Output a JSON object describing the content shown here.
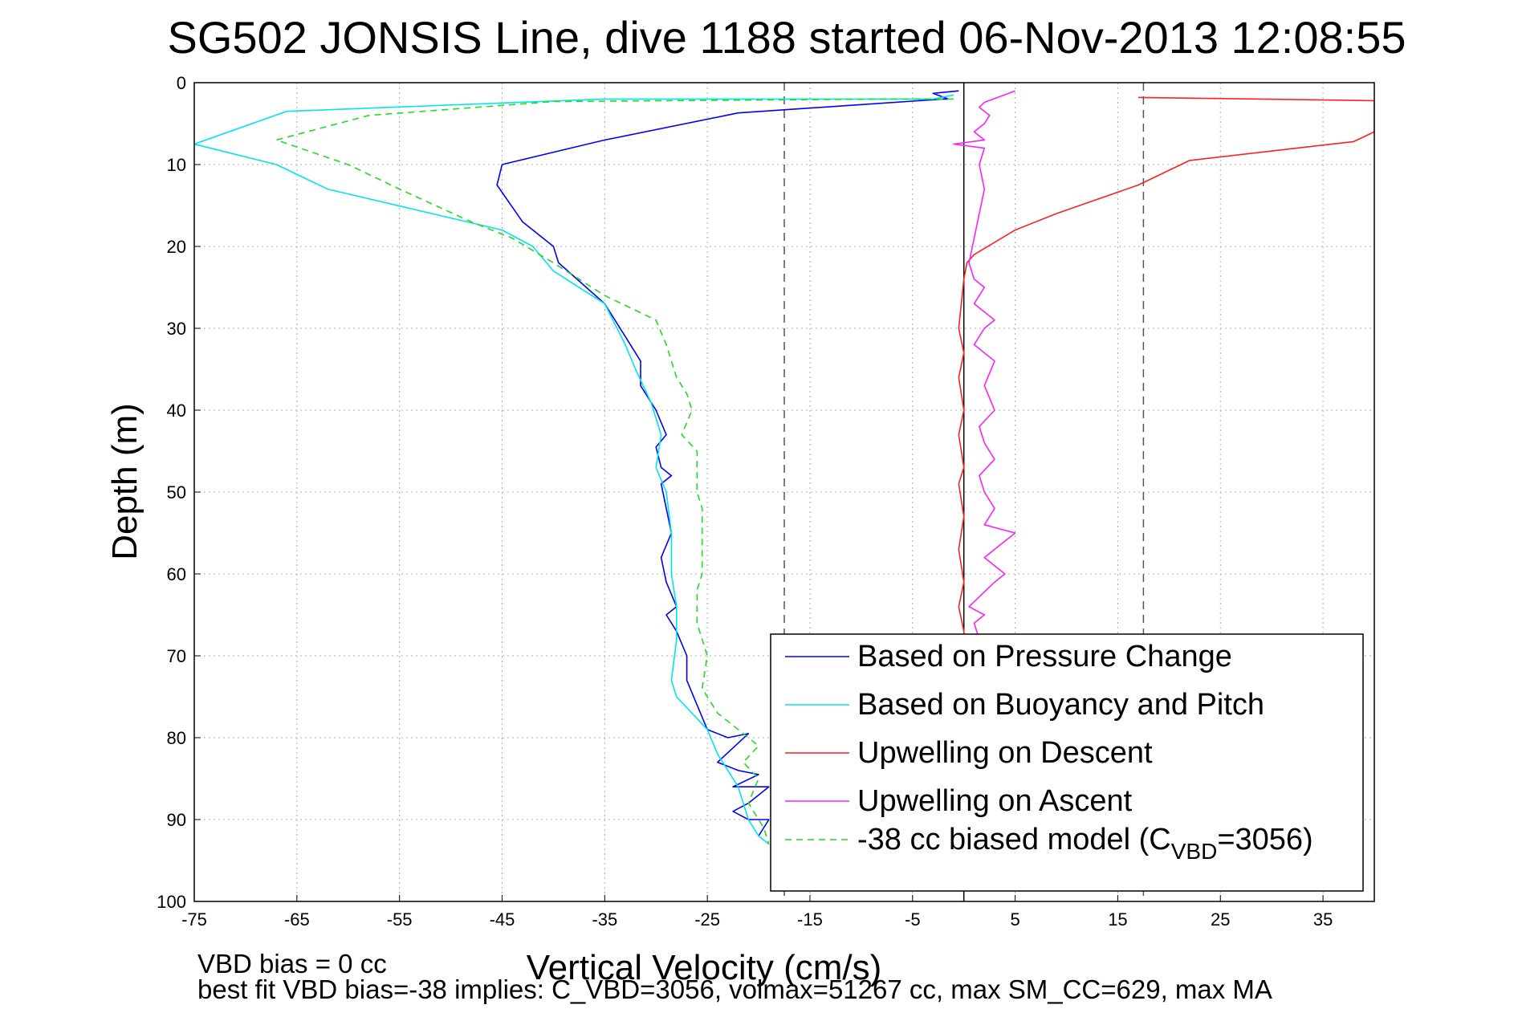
{
  "chart_data": {
    "type": "line",
    "title": "SG502 JONSIS Line, dive 1188 started 06-Nov-2013 12:08:55",
    "xlabel": "Vertical Velocity (cm/s)",
    "ylabel": "Depth (m)",
    "xlim": [
      -75,
      40
    ],
    "ylim": [
      0,
      100
    ],
    "y_reversed": true,
    "grid": true,
    "xticks": [
      -75,
      -65,
      -55,
      -45,
      -35,
      -25,
      -15,
      -5,
      5,
      15,
      25,
      35
    ],
    "yticks": [
      0,
      10,
      20,
      30,
      40,
      50,
      60,
      70,
      80,
      90,
      100
    ],
    "legend_position": "bottom-right",
    "reference_lines": [
      {
        "x": -17.5,
        "style": "dashed",
        "color": "#555555"
      },
      {
        "x": 0,
        "style": "solid",
        "color": "#000000"
      },
      {
        "x": 17.5,
        "style": "dashed",
        "color": "#555555"
      }
    ],
    "series": [
      {
        "name": "Based on Pressure Change",
        "color": "#0000ff",
        "dash": "none",
        "points": [
          [
            -0.5,
            1
          ],
          [
            -3,
            1.3
          ],
          [
            -1.5,
            2
          ],
          [
            -2,
            2
          ],
          [
            -22,
            3.7
          ],
          [
            -35,
            7
          ],
          [
            -45,
            10
          ],
          [
            -45.5,
            12.5
          ],
          [
            -43,
            17
          ],
          [
            -40,
            20
          ],
          [
            -39.5,
            22
          ],
          [
            -35,
            27
          ],
          [
            -33,
            31
          ],
          [
            -31.5,
            34
          ],
          [
            -31.5,
            37
          ],
          [
            -30,
            40
          ],
          [
            -29,
            43
          ],
          [
            -30,
            44.5
          ],
          [
            -29.5,
            47
          ],
          [
            -28.5,
            48
          ],
          [
            -29.5,
            49
          ],
          [
            -29,
            52
          ],
          [
            -28.5,
            55
          ],
          [
            -29.5,
            58
          ],
          [
            -29,
            61
          ],
          [
            -28,
            64
          ],
          [
            -29,
            65
          ],
          [
            -28,
            67
          ],
          [
            -27,
            70
          ],
          [
            -27,
            73
          ],
          [
            -26,
            76
          ],
          [
            -25,
            79
          ],
          [
            -23,
            80
          ],
          [
            -21,
            79.5
          ],
          [
            -24,
            83
          ],
          [
            -22,
            84
          ],
          [
            -20,
            84.5
          ],
          [
            -22.5,
            86
          ],
          [
            -19,
            86
          ],
          [
            -21,
            88
          ],
          [
            -22.5,
            89
          ],
          [
            -21,
            90
          ],
          [
            -19,
            90
          ],
          [
            -20,
            92
          ]
        ]
      },
      {
        "name": "Based on Buoyancy and Pitch",
        "color": "#00e5ee",
        "dash": "none",
        "points": [
          [
            -1,
            1.5
          ],
          [
            -3,
            2
          ],
          [
            -35,
            2
          ],
          [
            -66,
            3.5
          ],
          [
            -75,
            7.5
          ],
          [
            -67,
            10
          ],
          [
            -62,
            13
          ],
          [
            -45,
            18
          ],
          [
            -42,
            20
          ],
          [
            -40,
            23
          ],
          [
            -35,
            27
          ],
          [
            -33,
            32
          ],
          [
            -32,
            35
          ],
          [
            -30.5,
            39
          ],
          [
            -29.5,
            43
          ],
          [
            -30,
            47
          ],
          [
            -29,
            50
          ],
          [
            -28.5,
            55
          ],
          [
            -28.5,
            60
          ],
          [
            -28,
            64
          ],
          [
            -28,
            68
          ],
          [
            -28.5,
            73
          ],
          [
            -28,
            75
          ],
          [
            -25,
            79
          ],
          [
            -24,
            82
          ],
          [
            -22,
            86
          ],
          [
            -21,
            90
          ],
          [
            -20,
            92
          ],
          [
            -19,
            93
          ]
        ]
      },
      {
        "name": "Upwelling on Descent",
        "color": "#ff2020",
        "dash": "none",
        "points": [
          [
            17,
            1.8
          ],
          [
            40,
            2.2
          ],
          [
            40,
            6
          ],
          [
            38,
            7.2
          ],
          [
            22,
            9.5
          ],
          [
            17,
            12.5
          ],
          [
            9,
            16
          ],
          [
            5,
            18
          ],
          [
            1,
            21
          ],
          [
            0.3,
            22
          ],
          [
            0,
            24
          ],
          [
            -0.5,
            30
          ],
          [
            0,
            33
          ],
          [
            -0.5,
            36
          ],
          [
            0,
            40
          ],
          [
            -0.5,
            43
          ],
          [
            0,
            47
          ],
          [
            -0.5,
            49
          ],
          [
            0,
            53
          ],
          [
            -0.5,
            57
          ],
          [
            0,
            61
          ],
          [
            -0.5,
            64
          ],
          [
            0,
            67
          ],
          [
            0.2,
            70
          ]
        ]
      },
      {
        "name": "Upwelling on Ascent",
        "color": "#ff20ff",
        "dash": "none",
        "points": [
          [
            5,
            1
          ],
          [
            2,
            2.4
          ],
          [
            1.5,
            3
          ],
          [
            2.5,
            4
          ],
          [
            2,
            5
          ],
          [
            1,
            6
          ],
          [
            2,
            7
          ],
          [
            -1,
            7.5
          ],
          [
            2,
            8
          ],
          [
            1.5,
            10
          ],
          [
            2,
            13
          ],
          [
            1.5,
            16
          ],
          [
            1,
            19
          ],
          [
            0.5,
            22
          ],
          [
            1,
            24
          ],
          [
            2,
            25
          ],
          [
            1,
            27
          ],
          [
            3,
            29
          ],
          [
            2,
            30
          ],
          [
            1,
            32
          ],
          [
            3,
            34
          ],
          [
            2,
            37
          ],
          [
            3,
            40
          ],
          [
            1.5,
            42
          ],
          [
            2,
            44
          ],
          [
            3,
            46
          ],
          [
            1.5,
            48
          ],
          [
            2,
            50
          ],
          [
            3,
            52
          ],
          [
            2,
            54
          ],
          [
            5,
            55
          ],
          [
            3,
            57
          ],
          [
            2,
            58
          ],
          [
            4,
            60
          ],
          [
            3,
            61
          ],
          [
            0.5,
            64
          ],
          [
            2,
            65
          ],
          [
            1,
            66
          ],
          [
            1.5,
            68
          ]
        ]
      },
      {
        "name": "-38 cc biased model (C",
        "name_subscript": "VBD",
        "name_suffix": "=3056)",
        "color": "#22dd22",
        "dash": "8 6",
        "points": [
          [
            -1,
            2
          ],
          [
            -8,
            2
          ],
          [
            -40,
            2.3
          ],
          [
            -58,
            4
          ],
          [
            -67,
            7
          ],
          [
            -60,
            10
          ],
          [
            -55,
            13
          ],
          [
            -48,
            17
          ],
          [
            -44,
            19
          ],
          [
            -40,
            22
          ],
          [
            -35,
            26
          ],
          [
            -30,
            29
          ],
          [
            -29,
            32
          ],
          [
            -28,
            36
          ],
          [
            -27,
            38
          ],
          [
            -26.5,
            40
          ],
          [
            -27.5,
            43
          ],
          [
            -26,
            45
          ],
          [
            -26,
            48
          ],
          [
            -26,
            50
          ],
          [
            -25.5,
            52
          ],
          [
            -25.5,
            56
          ],
          [
            -25.5,
            60
          ],
          [
            -26,
            62
          ],
          [
            -26,
            66
          ],
          [
            -25,
            70
          ],
          [
            -25.5,
            74
          ],
          [
            -24,
            77
          ],
          [
            -22,
            79
          ],
          [
            -20,
            81
          ],
          [
            -21.5,
            83
          ],
          [
            -20,
            85
          ],
          [
            -21,
            88
          ],
          [
            -20,
            90
          ],
          [
            -19.5,
            91
          ],
          [
            -19,
            93
          ]
        ]
      }
    ],
    "legend_entries": [
      {
        "label": "Based on Pressure Change"
      },
      {
        "label": "Based on Buoyancy and Pitch"
      },
      {
        "label": "Upwelling on Descent"
      },
      {
        "label": "Upwelling on Ascent"
      },
      {
        "label": "-38 cc biased model (C",
        "subscript": "VBD",
        "suffix": "=3056)"
      }
    ],
    "annotations": [
      {
        "text": "VBD bias = 0 cc"
      },
      {
        "text": "best fit VBD bias=-38 implies: C_VBD=3056, volmax=51267 cc, max SM_CC=629, max MA"
      }
    ]
  }
}
